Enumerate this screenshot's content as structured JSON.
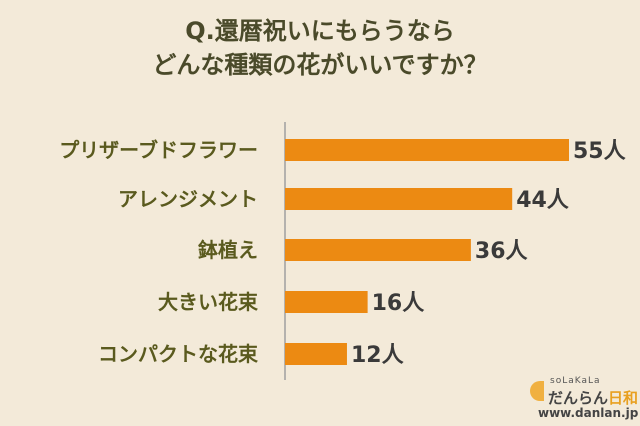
{
  "title_line1": "Q.還暦祝いにもらうなら",
  "title_line2": "どんな種類の花がいいですか？",
  "chart_data": {
    "type": "bar",
    "orientation": "horizontal",
    "categories": [
      "プリザーブドフラワー",
      "アレンジメント",
      "鉢植え",
      "大きい花束",
      "コンパクトな花束"
    ],
    "values": [
      55,
      44,
      36,
      16,
      12
    ],
    "value_labels": [
      "55人",
      "44人",
      "36人",
      "16人",
      "12人"
    ],
    "unit": "人",
    "xlim": [
      0,
      55
    ],
    "bar_color": "#ec8a12",
    "axis_color": "#a0a0a0",
    "grid": false,
    "legend": "none"
  },
  "logo": {
    "small_text": "soLaKaLa",
    "main_text": "だんらん",
    "accent_text": "日和",
    "url": "www.danlan.jp"
  }
}
